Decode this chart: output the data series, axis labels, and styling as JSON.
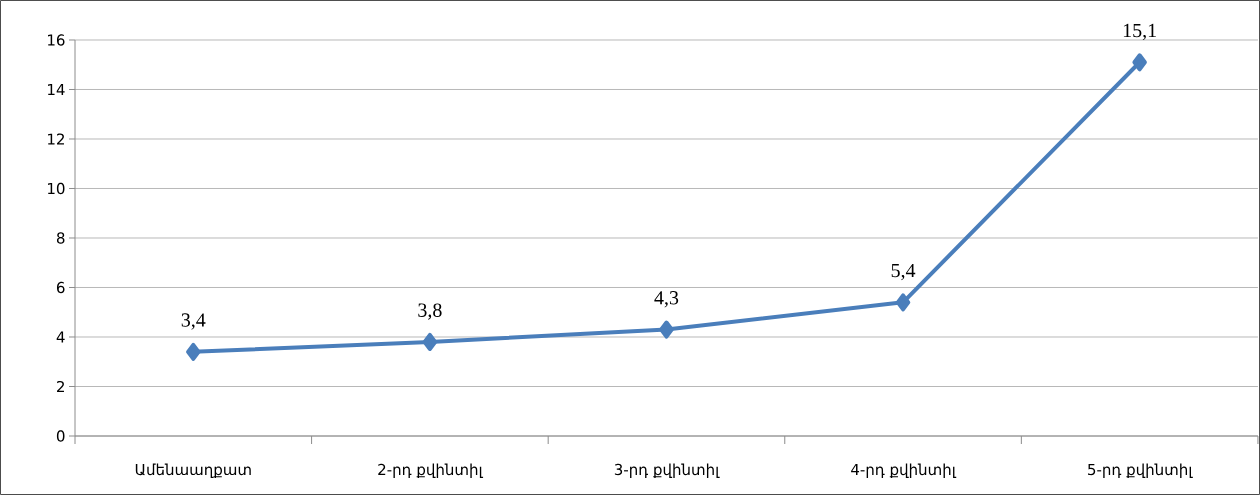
{
  "chart_data": {
    "type": "line",
    "categories": [
      "Ամենաաղքատ",
      "2-րդ քվինտիլ",
      "3-րդ քվինտիլ",
      "4-րդ քվինտիլ",
      "5-րդ քվինտիլ"
    ],
    "series": [
      {
        "color": "#4a7ebb",
        "values": [
          3.4,
          3.8,
          4.3,
          5.4,
          15.1
        ],
        "value_labels": [
          "3,4",
          "3,8",
          "4,3",
          "5,4",
          "15,1"
        ]
      }
    ],
    "ylim": [
      0,
      16
    ],
    "yticks": [
      0,
      2,
      4,
      6,
      8,
      10,
      12,
      14,
      16
    ],
    "grid": "y",
    "marker": "diamond",
    "line_style": "solid"
  }
}
